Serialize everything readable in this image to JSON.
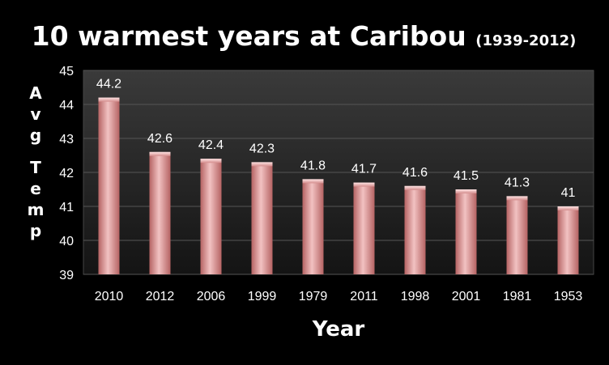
{
  "chart_data": {
    "type": "bar",
    "title": "10 warmest years at Caribou",
    "subtitle": "(1939-2012)",
    "xlabel": "Year",
    "ylabel": "Avg Temp",
    "categories": [
      "2010",
      "2012",
      "2006",
      "1999",
      "1979",
      "2011",
      "1998",
      "2001",
      "1981",
      "1953"
    ],
    "values": [
      44.2,
      42.6,
      42.4,
      42.3,
      41.8,
      41.7,
      41.6,
      41.5,
      41.3,
      41
    ],
    "value_labels": [
      "44.2",
      "42.6",
      "42.4",
      "42.3",
      "41.8",
      "41.7",
      "41.6",
      "41.5",
      "41.3",
      "41"
    ],
    "ylim": [
      39,
      45
    ],
    "yticks": [
      "39",
      "40",
      "41",
      "42",
      "43",
      "44",
      "45"
    ],
    "grid": true,
    "legend": "none",
    "colors": {
      "background": "#000000",
      "plot_top": "#3a3a3a",
      "plot_bottom": "#141414",
      "bar_dark": "#b56363",
      "bar_light": "#f2c2c2",
      "text": "#ffffff",
      "grid": "#555555"
    }
  }
}
